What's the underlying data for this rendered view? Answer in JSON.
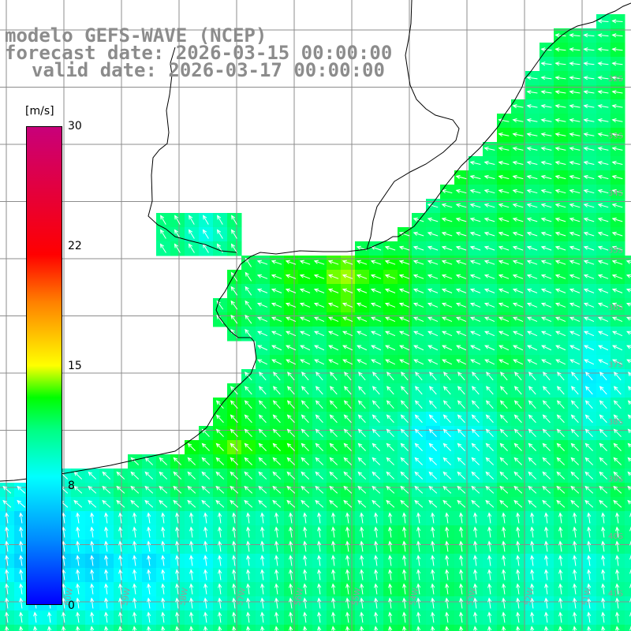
{
  "title": {
    "line1": "modelo GEFS-WAVE (NCEP)",
    "line2": "forecast date: 2026-03-15 00:00:00",
    "line3": "valid date: 2026-03-17 00:00:00"
  },
  "colorbar": {
    "unit": "[m/s]",
    "ticks": [
      "30",
      "22",
      "15",
      "8",
      "0"
    ],
    "range": [
      0,
      30
    ],
    "stops": [
      {
        "value": 0,
        "color": "#0000ff"
      },
      {
        "value": 4,
        "color": "#0088ff"
      },
      {
        "value": 8,
        "color": "#00ffff"
      },
      {
        "value": 11,
        "color": "#00ff80"
      },
      {
        "value": 13,
        "color": "#00ff00"
      },
      {
        "value": 15,
        "color": "#ffff00"
      },
      {
        "value": 19,
        "color": "#ff8000"
      },
      {
        "value": 22,
        "color": "#ff0000"
      },
      {
        "value": 30,
        "color": "#c8007a"
      }
    ]
  },
  "latitude_labels": [
    "32S",
    "33S",
    "34S",
    "35S",
    "36S",
    "37S",
    "38S",
    "39S",
    "40S",
    "41S"
  ],
  "longitude_labels": [
    "60W",
    "59W",
    "58W",
    "57W",
    "56W",
    "55W",
    "54W",
    "53W",
    "52W",
    "51W"
  ],
  "map_colors": {
    "land": "#ffffff",
    "grid": "#8c8c8c",
    "coast": "#000000",
    "arrow": "#ffffff",
    "label": "#999999"
  }
}
